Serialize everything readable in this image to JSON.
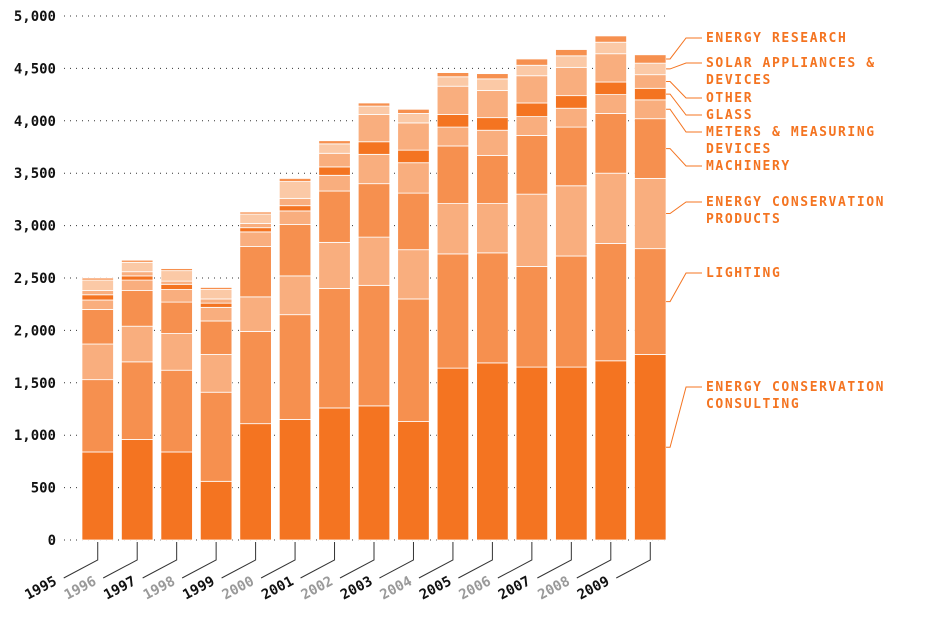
{
  "chart_data": {
    "type": "stacked_bar",
    "categories": [
      "1995",
      "1996",
      "1997",
      "1998",
      "1999",
      "2000",
      "2001",
      "2002",
      "2003",
      "2004",
      "2005",
      "2006",
      "2007",
      "2008",
      "2009"
    ],
    "ylim": [
      0,
      5000
    ],
    "yticks": [
      0,
      500,
      {
        "value": 1000,
        "label": "1,000"
      },
      {
        "value": 1500,
        "label": "1,500"
      },
      {
        "value": 2000,
        "label": "2,000"
      },
      {
        "value": 2500,
        "label": "2,500"
      },
      {
        "value": 3000,
        "label": "3,000"
      },
      {
        "value": 3500,
        "label": "3,500"
      },
      {
        "value": 4000,
        "label": "4,000"
      },
      {
        "value": 4500,
        "label": "4,500"
      },
      {
        "value": 5000,
        "label": "5,000"
      }
    ],
    "grid": true,
    "series": [
      {
        "name": "ENERGY CONSERVATION CONSULTING",
        "color": "#f47421",
        "values": [
          840,
          960,
          840,
          560,
          1110,
          1150,
          1260,
          1280,
          1130,
          1640,
          1690,
          1650,
          1650,
          1710,
          1770
        ]
      },
      {
        "name": "LIGHTING",
        "color": "#f6904f",
        "values": [
          690,
          740,
          780,
          850,
          880,
          1000,
          1140,
          1150,
          1170,
          1090,
          1050,
          960,
          1060,
          1120,
          1010
        ]
      },
      {
        "name": "ENERGY CONSERVATION PRODUCTS",
        "color": "#f9ae7e",
        "values": [
          340,
          340,
          350,
          360,
          330,
          370,
          440,
          460,
          470,
          480,
          470,
          690,
          670,
          670,
          670
        ]
      },
      {
        "name": "MACHINERY",
        "color": "#f6904f",
        "values": [
          330,
          340,
          300,
          320,
          480,
          490,
          490,
          510,
          540,
          550,
          460,
          560,
          560,
          570,
          570
        ]
      },
      {
        "name": "METERS & MEASURING DEVICES",
        "color": "#f9ae7e",
        "values": [
          90,
          100,
          120,
          130,
          140,
          130,
          150,
          280,
          290,
          180,
          240,
          180,
          180,
          180,
          180
        ]
      },
      {
        "name": "GLASS",
        "color": "#f47421",
        "values": [
          50,
          40,
          50,
          40,
          40,
          50,
          80,
          120,
          120,
          120,
          120,
          130,
          120,
          120,
          110
        ]
      },
      {
        "name": "OTHER",
        "color": "#f9ae7e",
        "values": [
          40,
          40,
          30,
          40,
          40,
          70,
          130,
          260,
          260,
          270,
          260,
          260,
          270,
          270,
          130
        ]
      },
      {
        "name": "SOLAR APPLIANCES & DEVICES",
        "color": "#fbc9a6",
        "values": [
          100,
          90,
          100,
          90,
          90,
          160,
          90,
          80,
          90,
          90,
          110,
          100,
          110,
          110,
          110
        ]
      },
      {
        "name": "ENERGY RESEARCH",
        "color": "#f6904f",
        "values": [
          20,
          20,
          20,
          20,
          20,
          30,
          30,
          30,
          40,
          40,
          50,
          60,
          60,
          60,
          80
        ]
      }
    ]
  }
}
